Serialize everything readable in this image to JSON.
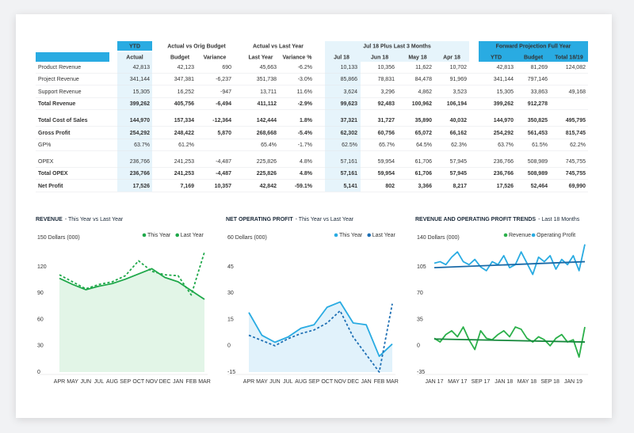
{
  "table": {
    "groups": [
      "YTD",
      "Actual vs Orig Budget",
      "Actual vs Last Year",
      "Jul 18 Plus Last 3 Months",
      "Forward Projection Full Year"
    ],
    "columns": [
      "Actual",
      "Budget",
      "Variance",
      "Last Year",
      "Variance %",
      "Jul 18",
      "Jun 18",
      "May 18",
      "Apr 18",
      "YTD",
      "Budget",
      "Total 18/19"
    ],
    "rows": [
      {
        "label": "Product Revenue",
        "cells": [
          "42,813",
          "42,123",
          "690",
          "45,663",
          "-6.2%",
          "10,133",
          "10,356",
          "11,622",
          "10,702",
          "42,813",
          "81,269",
          "124,082"
        ],
        "red": [
          4
        ]
      },
      {
        "label": "Project Revenue",
        "cells": [
          "341,144",
          "347,381",
          "-6,237",
          "351,738",
          "-3.0%",
          "85,866",
          "78,831",
          "84,478",
          "91,969",
          "341,144",
          "797,146",
          null
        ],
        "red": [
          2,
          4
        ]
      },
      {
        "label": "Support Revenue",
        "cells": [
          "15,305",
          "16,252",
          "-947",
          "13,711",
          "11.6%",
          "3,624",
          "3,296",
          "4,862",
          "3,523",
          "15,305",
          "33,863",
          "49,168"
        ],
        "red": [
          2
        ]
      },
      {
        "label": "Total Revenue",
        "cells": [
          "399,262",
          "405,756",
          "-6,494",
          "411,112",
          "-2.9%",
          "99,623",
          "92,483",
          "100,962",
          "106,194",
          "399,262",
          "912,278",
          null
        ],
        "bold": true,
        "red": [
          2,
          4
        ]
      },
      {
        "label": "Total Cost of Sales",
        "cells": [
          "144,970",
          "157,334",
          "-12,364",
          "142,444",
          "1.8%",
          "37,321",
          "31,727",
          "35,890",
          "40,032",
          "144,970",
          "350,825",
          "495,795"
        ],
        "bold": true,
        "red": [
          4
        ]
      },
      {
        "label": "Gross Profit",
        "cells": [
          "254,292",
          "248,422",
          "5,870",
          "268,668",
          "-5.4%",
          "62,302",
          "60,756",
          "65,072",
          "66,162",
          "254,292",
          "561,453",
          "815,745"
        ],
        "bold": true,
        "red": [
          4
        ]
      },
      {
        "label": "GP%",
        "cells": [
          "63.7%",
          "61.2%",
          null,
          "65.4%",
          "-1.7%",
          "62.5%",
          "65.7%",
          "64.5%",
          "62.3%",
          "63.7%",
          "61.5%",
          "62.2%"
        ],
        "red": [
          4
        ]
      },
      {
        "label": "OPEX",
        "cells": [
          "236,766",
          "241,253",
          "-4,487",
          "225,826",
          "4.8%",
          "57,161",
          "59,954",
          "61,706",
          "57,945",
          "236,766",
          "508,989",
          "745,755"
        ],
        "red": [
          4
        ]
      },
      {
        "label": "Total OPEX",
        "cells": [
          "236,766",
          "241,253",
          "-4,487",
          "225,826",
          "4.8%",
          "57,161",
          "59,954",
          "61,706",
          "57,945",
          "236,766",
          "508,989",
          "745,755"
        ],
        "bold": true,
        "red": [
          4
        ]
      },
      {
        "label": "Net Profit",
        "cells": [
          "17,526",
          "7,169",
          "10,357",
          "42,842",
          "-59.1%",
          "5,141",
          "802",
          "3,366",
          "8,217",
          "17,526",
          "52,464",
          "69,990"
        ],
        "bold": true,
        "red": [
          4
        ]
      }
    ]
  },
  "chart_data": [
    {
      "type": "line",
      "title": "REVENUE",
      "subtitle": "- This Year vs Last Year",
      "y_label": "150 Dollars (000)",
      "categories": [
        "APR",
        "MAY",
        "JUN",
        "JUL",
        "AUG",
        "SEP",
        "OCT",
        "NOV",
        "DEC",
        "JAN",
        "FEB",
        "MAR"
      ],
      "ylim": [
        0,
        150
      ],
      "yticks": [
        0,
        30,
        60,
        90,
        120
      ],
      "series": [
        {
          "name": "This Year",
          "color": "#1fa84a",
          "area": "#e2f5e7",
          "values": [
            107,
            100,
            94,
            98,
            101,
            106,
            112,
            118,
            108,
            103,
            93,
            83
          ]
        },
        {
          "name": "Last Year",
          "color": "#1fa84a",
          "dashed": true,
          "values": [
            111,
            103,
            95,
            100,
            103,
            110,
            127,
            115,
            111,
            110,
            88,
            137
          ]
        }
      ]
    },
    {
      "type": "line",
      "title": "NET OPERATING PROFIT",
      "subtitle": "- This Year vs Last Year",
      "y_label": "60 Dollars (000)",
      "categories": [
        "APR",
        "MAY",
        "JUN",
        "JUL",
        "AUG",
        "SEP",
        "OCT",
        "NOV",
        "DEC",
        "JAN",
        "FEB",
        "MAR"
      ],
      "ylim": [
        -15,
        60
      ],
      "yticks": [
        -15,
        0,
        15,
        30,
        45
      ],
      "series": [
        {
          "name": "This Year",
          "color": "#29abe2",
          "area": "#e1f2fb",
          "values": [
            19,
            6,
            2,
            5,
            10,
            12,
            22,
            25,
            13,
            12,
            -6,
            1
          ]
        },
        {
          "name": "Last Year",
          "color": "#1e6fb4",
          "dashed": true,
          "values": [
            6,
            3,
            0,
            4,
            7,
            9,
            13,
            20,
            5,
            -5,
            -15,
            24
          ]
        }
      ]
    },
    {
      "type": "line",
      "title": "REVENUE AND OPERATING PROFIT TRENDS",
      "subtitle": "- Last 18 Months",
      "y_label": "140 Dollars (000)",
      "categories": [
        "JAN 17",
        null,
        null,
        null,
        "MAY 17",
        null,
        null,
        null,
        "SEP 17",
        null,
        null,
        null,
        "JAN 18",
        null,
        null,
        null,
        "MAY 18",
        null,
        null,
        null,
        "SEP 18",
        null,
        null,
        null,
        "JAN 19",
        null,
        null
      ],
      "ylim": [
        -35,
        140
      ],
      "yticks": [
        -35,
        0,
        35,
        70,
        105
      ],
      "series": [
        {
          "name": "Revenue",
          "color": "#2bb04a",
          "trend_color": "#14873a",
          "trend": [
            9,
            5
          ],
          "values": [
            10,
            5,
            15,
            20,
            12,
            25,
            8,
            -5,
            20,
            10,
            8,
            15,
            20,
            12,
            25,
            22,
            10,
            5,
            12,
            8,
            0,
            10,
            15,
            5,
            8,
            -15,
            25
          ]
        },
        {
          "name": "Operating Profit",
          "color": "#29abe2",
          "trend_color": "#1a6aa8",
          "trend": [
            104,
            112
          ],
          "values": [
            110,
            112,
            108,
            118,
            125,
            112,
            108,
            115,
            105,
            100,
            112,
            108,
            120,
            104,
            108,
            125,
            110,
            95,
            118,
            112,
            120,
            102,
            115,
            108,
            120,
            100,
            135
          ]
        }
      ]
    }
  ]
}
